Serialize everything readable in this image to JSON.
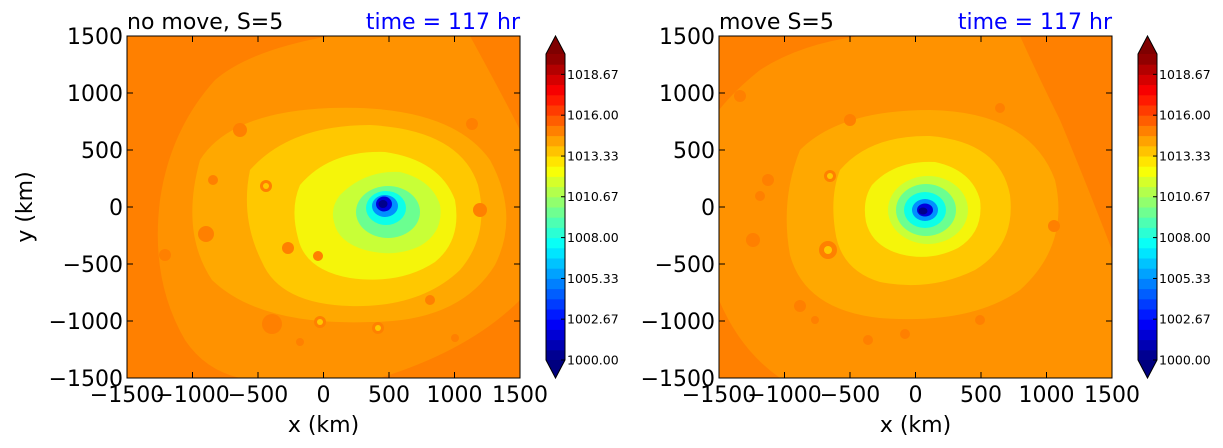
{
  "chart_data": [
    {
      "type": "heatmap",
      "title": "no move, S=5",
      "title_right": "time = 117 hr",
      "xlabel": "x (km)",
      "ylabel": "y (km)",
      "xlim": [
        -1500,
        1500
      ],
      "ylim": [
        -1500,
        1500
      ],
      "xticks": [
        "−1500",
        "−1000",
        "−500",
        "0",
        "500",
        "1000",
        "1500"
      ],
      "yticks": [
        "−1500",
        "−1000",
        "−500",
        "0",
        "500",
        "1000",
        "1500"
      ],
      "xtick_values": [
        -1500,
        -1000,
        -500,
        0,
        500,
        1000,
        1500
      ],
      "ytick_values": [
        -1500,
        -1000,
        -500,
        0,
        500,
        1000,
        1500
      ],
      "center_km": [
        450,
        20
      ],
      "colorbar": {
        "range": [
          1000.0,
          1020.0
        ],
        "tick_values": [
          1000.0,
          1002.67,
          1005.33,
          1008.0,
          1010.67,
          1013.33,
          1016.0,
          1018.67
        ],
        "tick_labels": [
          "1000.00",
          "1002.67",
          "1005.33",
          "1008.00",
          "1010.67",
          "1013.33",
          "1016.00",
          "1018.67"
        ],
        "extend": "both"
      }
    },
    {
      "type": "heatmap",
      "title": "move S=5",
      "title_right": "time = 117 hr",
      "xlabel": "x (km)",
      "ylabel": "",
      "xlim": [
        -1500,
        1500
      ],
      "ylim": [
        -1500,
        1500
      ],
      "xticks": [
        "−1500",
        "−1000",
        "−500",
        "0",
        "500",
        "1000",
        "1500"
      ],
      "yticks": [
        "−1500",
        "−1000",
        "−500",
        "0",
        "500",
        "1000",
        "1500"
      ],
      "xtick_values": [
        -1500,
        -1000,
        -500,
        0,
        500,
        1000,
        1500
      ],
      "ytick_values": [
        -1500,
        -1000,
        -500,
        0,
        500,
        1000,
        1500
      ],
      "center_km": [
        80,
        -40
      ],
      "colorbar": {
        "range": [
          1000.0,
          1020.0
        ],
        "tick_values": [
          1000.0,
          1002.67,
          1005.33,
          1008.0,
          1010.67,
          1013.33,
          1016.0,
          1018.67
        ],
        "tick_labels": [
          "1000.00",
          "1002.67",
          "1005.33",
          "1008.00",
          "1010.67",
          "1013.33",
          "1016.00",
          "1018.67"
        ],
        "extend": "both"
      }
    }
  ]
}
